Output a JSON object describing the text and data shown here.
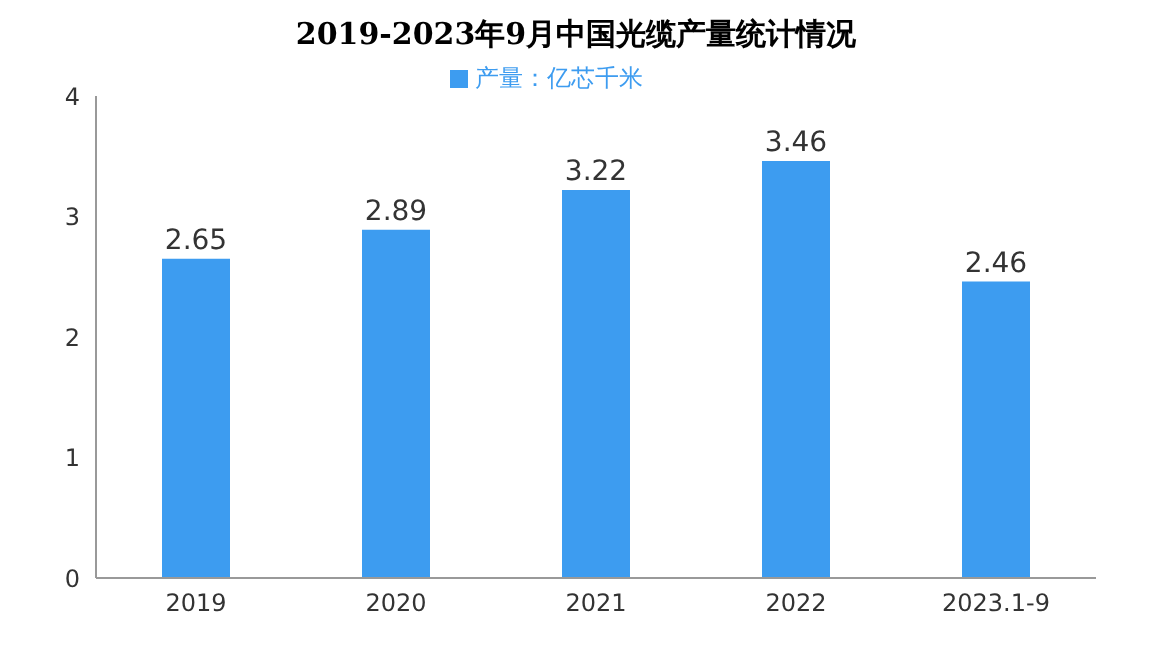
{
  "chart_data": {
    "type": "bar",
    "title": "2019-2023年9月中国光缆产量统计情况",
    "categories": [
      "2019",
      "2020",
      "2021",
      "2022",
      "2023.1-9"
    ],
    "series": [
      {
        "name": "产量：亿芯千米",
        "color": "#3d9cf0",
        "values": [
          2.65,
          2.89,
          3.22,
          3.46,
          2.46
        ]
      }
    ],
    "ylim": [
      0,
      4
    ],
    "yticks": [
      0,
      1,
      2,
      3,
      4
    ],
    "grid": false,
    "legend": "top",
    "data_labels": true
  }
}
